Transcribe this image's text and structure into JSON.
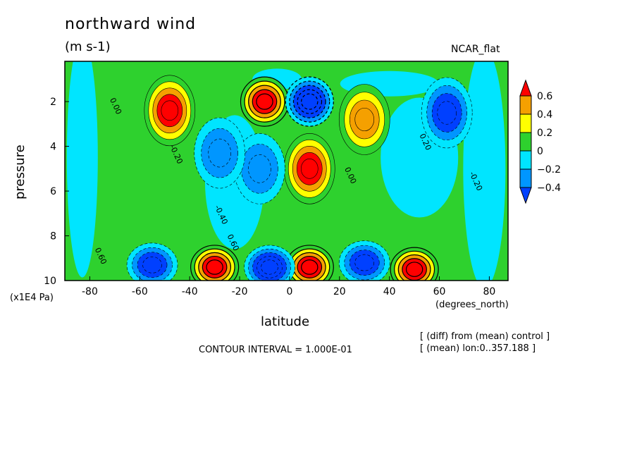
{
  "chart_data": {
    "type": "heatmap",
    "title": "northward wind",
    "subtitle": "(m s-1)",
    "case_label": "NCAR_flat",
    "xlabel": "latitude",
    "x_unit_label": "(degrees_north)",
    "ylabel": "pressure",
    "y_unit_label": "(x1E4 Pa)",
    "xlim": [
      -90,
      87.5
    ],
    "ylim": [
      10,
      0.2
    ],
    "x_ticks": [
      -80,
      -60,
      -40,
      -20,
      0,
      20,
      40,
      60,
      80
    ],
    "y_ticks": [
      2,
      4,
      6,
      8,
      10
    ],
    "contour_interval_text": "CONTOUR INTERVAL = 1.000E-01",
    "annotations": [
      "[ (diff) from (mean) control ]",
      "[ (mean) lon:0..357.188 ]"
    ],
    "contour_labels": [
      "0.00",
      "-0.20",
      "-0.40",
      "0.60",
      "0.20"
    ],
    "colorbar": {
      "ticks": [
        "0.6",
        "0.4",
        "0.2",
        "0",
        "−0.2",
        "−0.4"
      ],
      "levels": [
        {
          "range": "> 0.6",
          "color": "#ff0000"
        },
        {
          "range": "0.4 – 0.6",
          "color": "#f5a000"
        },
        {
          "range": "0.2 – 0.4",
          "color": "#ffff00"
        },
        {
          "range": "0 – 0.2",
          "color": "#2ed12e"
        },
        {
          "range": "-0.2 – 0",
          "color": "#00e5ff"
        },
        {
          "range": "-0.4 – -0.2",
          "color": "#0096ff"
        },
        {
          "range": "< -0.4",
          "color": "#0040ff"
        }
      ]
    },
    "features": [
      {
        "lat": -48,
        "p": 2.4,
        "value": 0.65
      },
      {
        "lat": -10,
        "p": 2.0,
        "value": 0.9
      },
      {
        "lat": 8,
        "p": 2.0,
        "value": -0.9
      },
      {
        "lat": 30,
        "p": 2.8,
        "value": 0.55
      },
      {
        "lat": 63,
        "p": 2.5,
        "value": -0.45
      },
      {
        "lat": 8,
        "p": 5.0,
        "value": 0.65
      },
      {
        "lat": -12,
        "p": 5.0,
        "value": -0.35
      },
      {
        "lat": -28,
        "p": 4.3,
        "value": -0.3
      },
      {
        "lat": -30,
        "p": 9.4,
        "value": 0.9
      },
      {
        "lat": 8,
        "p": 9.4,
        "value": 0.9
      },
      {
        "lat": 50,
        "p": 9.5,
        "value": 0.8
      },
      {
        "lat": -8,
        "p": 9.4,
        "value": -0.7
      },
      {
        "lat": -55,
        "p": 9.3,
        "value": -0.6
      },
      {
        "lat": 30,
        "p": 9.2,
        "value": -0.6
      }
    ]
  }
}
